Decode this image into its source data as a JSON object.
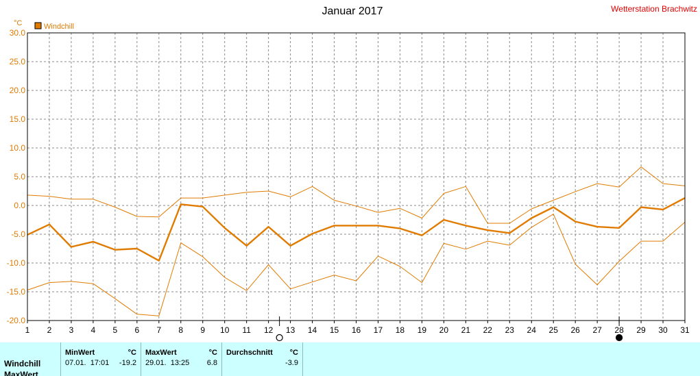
{
  "header": {
    "title": "Januar 2017",
    "station": "Wetterstation Brachwitz"
  },
  "chart_data": {
    "type": "line",
    "unit": "°C",
    "legend": [
      {
        "label": "Windchill",
        "color": "#e07b00"
      }
    ],
    "ylim": [
      -20,
      30
    ],
    "yticks": [
      "30.0",
      "25.0",
      "20.0",
      "15.0",
      "10.0",
      "5.0",
      "0.0",
      "-5.0",
      "-10.0",
      "-15.0",
      "-20.0"
    ],
    "ytick_values": [
      30,
      25,
      20,
      15,
      10,
      5,
      0,
      -5,
      -10,
      -15,
      -20
    ],
    "xlim": [
      1,
      31
    ],
    "x": [
      1,
      2,
      3,
      4,
      5,
      6,
      7,
      8,
      9,
      10,
      11,
      12,
      13,
      14,
      15,
      16,
      17,
      18,
      19,
      20,
      21,
      22,
      23,
      24,
      25,
      26,
      27,
      28,
      29,
      30,
      31
    ],
    "grid": true,
    "series": [
      {
        "role": "max",
        "values": [
          1.8,
          1.6,
          1.1,
          1.1,
          -0.3,
          -1.9,
          -2.0,
          1.3,
          1.3,
          1.8,
          2.3,
          2.5,
          1.5,
          3.3,
          0.9,
          -0.1,
          -1.2,
          -0.5,
          -2.2,
          2.1,
          3.3,
          -3.1,
          -3.1,
          -0.6,
          0.9,
          2.4,
          3.8,
          3.2,
          6.7,
          3.8,
          3.4
        ]
      },
      {
        "role": "avg",
        "values": [
          -5.1,
          -3.3,
          -7.2,
          -6.3,
          -7.7,
          -7.5,
          -9.6,
          0.2,
          -0.2,
          -3.9,
          -7.0,
          -3.7,
          -7.0,
          -4.9,
          -3.5,
          -3.5,
          -3.5,
          -4.0,
          -5.2,
          -2.5,
          -3.5,
          -4.3,
          -4.8,
          -2.2,
          -0.3,
          -2.8,
          -3.7,
          -3.9,
          -0.3,
          -0.7,
          1.3
        ]
      },
      {
        "role": "min",
        "values": [
          -14.7,
          -13.4,
          -13.2,
          -13.6,
          -16.2,
          -18.9,
          -19.2,
          -6.5,
          -8.9,
          -12.5,
          -14.8,
          -10.3,
          -14.5,
          -13.3,
          -12.1,
          -13.1,
          -8.8,
          -10.6,
          -13.4,
          -6.6,
          -7.6,
          -6.2,
          -6.9,
          -3.8,
          -1.5,
          -10.2,
          -13.8,
          -9.7,
          -6.2,
          -6.2,
          -2.9
        ]
      }
    ],
    "markers": [
      {
        "x": 12.5,
        "symbol": "open-circle"
      },
      {
        "x": 28,
        "symbol": "filled-circle"
      }
    ]
  },
  "stats": {
    "rows": [
      "Windchill",
      "MaxWert"
    ],
    "min": {
      "header": "MinWert",
      "unit": "°C",
      "datetime": "07.01.  17:01",
      "value": "-19.2"
    },
    "max": {
      "header": "MaxWert",
      "unit": "°C",
      "datetime": "29.01.  13:25",
      "value": "6.8"
    },
    "avg": {
      "header": "Durchschnitt",
      "unit": "°C",
      "value": "-3.9"
    }
  }
}
